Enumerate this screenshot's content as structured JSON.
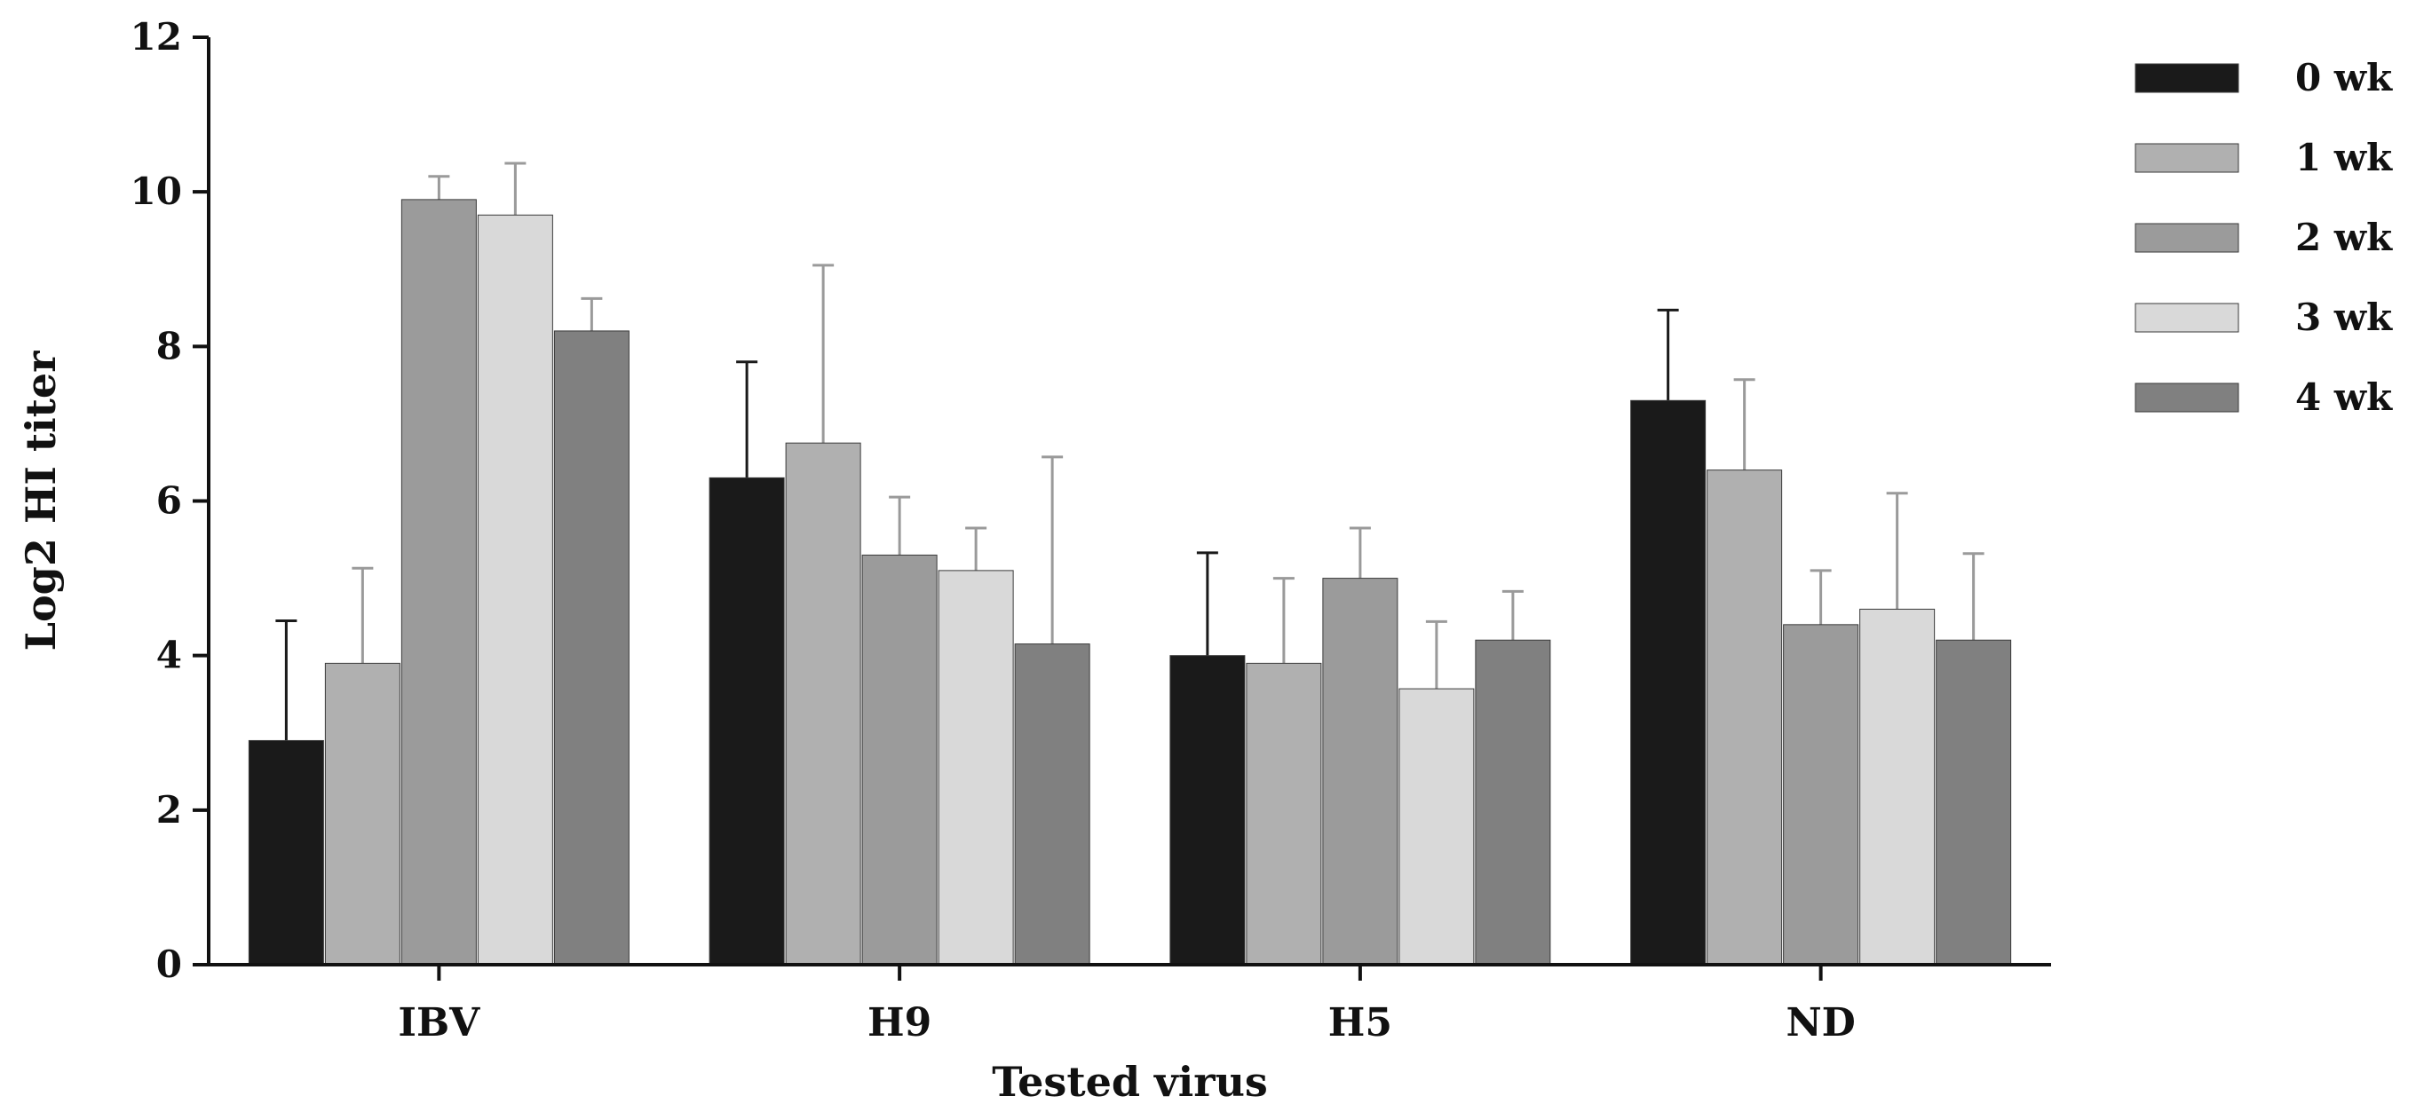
{
  "chart_data": {
    "type": "bar",
    "xlabel": "Tested virus",
    "ylabel": "Log2 HI titer",
    "ylim": [
      0,
      12
    ],
    "yticks": [
      "0",
      "2",
      "4",
      "6",
      "8",
      "10",
      "12"
    ],
    "grid": false,
    "legend_position": "top-right",
    "categories": [
      "IBV",
      "H9",
      "H5",
      "ND"
    ],
    "series": [
      {
        "name": "0 wk",
        "color": "#1a1a1a",
        "values": [
          2.9,
          6.3,
          4.0,
          7.3
        ],
        "errors": [
          1.55,
          1.5,
          1.33,
          1.17
        ]
      },
      {
        "name": "1 wk",
        "color": "#b0b0b0",
        "values": [
          3.9,
          6.75,
          3.9,
          6.4
        ],
        "errors": [
          1.23,
          2.3,
          1.1,
          1.17
        ]
      },
      {
        "name": "2 wk",
        "color": "#9b9b9b",
        "values": [
          9.9,
          5.3,
          5.0,
          4.4
        ],
        "errors": [
          0.3,
          0.75,
          0.65,
          0.7
        ]
      },
      {
        "name": "3 wk",
        "color": "#d9d9d9",
        "values": [
          9.7,
          5.1,
          3.57,
          4.6
        ],
        "errors": [
          0.67,
          0.55,
          0.87,
          1.5
        ]
      },
      {
        "name": "4 wk",
        "color": "#808080",
        "values": [
          8.2,
          4.15,
          4.2,
          4.2
        ],
        "errors": [
          0.42,
          2.42,
          0.63,
          1.12
        ]
      }
    ]
  }
}
